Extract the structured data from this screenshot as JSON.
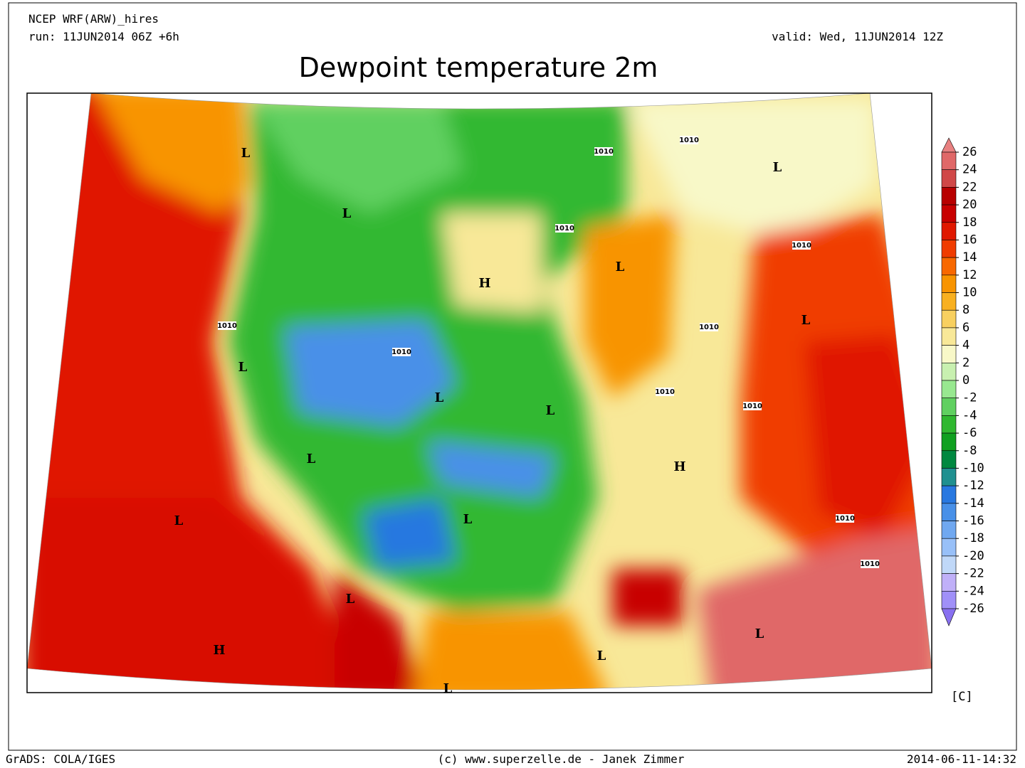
{
  "header": {
    "model": "NCEP WRF(ARW)_hires",
    "run": "run: 11JUN2014 06Z +6h",
    "valid": "valid: Wed, 11JUN2014 12Z",
    "title": "Dewpoint temperature 2m"
  },
  "colorbar": {
    "unit": "[C]",
    "levels": [
      26,
      24,
      22,
      20,
      18,
      16,
      14,
      12,
      10,
      8,
      6,
      4,
      2,
      0,
      -2,
      -4,
      -6,
      -8,
      -10,
      -12,
      -14,
      -16,
      -18,
      -20,
      -22,
      -24,
      -26
    ],
    "colors": [
      "#e88080",
      "#e06868",
      "#d04848",
      "#b80000",
      "#c80000",
      "#e01800",
      "#f03c00",
      "#f86800",
      "#f89400",
      "#f8b020",
      "#f8d060",
      "#f8e898",
      "#f8f8c8",
      "#c8f0b0",
      "#98e890",
      "#60d060",
      "#30b830",
      "#10a020",
      "#008840",
      "#209090",
      "#2878e0",
      "#4890e8",
      "#70a8f0",
      "#98c0f8",
      "#c0d8f8",
      "#c0b0f8",
      "#a090f8",
      "#8870f0"
    ]
  },
  "map_labels": [
    "L",
    "L",
    "H",
    "L",
    "L",
    "L",
    "L",
    "L",
    "H",
    "L",
    "L",
    "L",
    "H",
    "L",
    "L",
    "L",
    "L",
    "L",
    "1010",
    "1010",
    "1010",
    "1010",
    "1010",
    "1010",
    "1010",
    "1010",
    "1010",
    "1010",
    "1010"
  ],
  "footer": {
    "left": "GrADS: COLA/IGES",
    "center": "(c) www.superzelle.de - Janek Zimmer",
    "right": "2014-06-11-14:32"
  }
}
